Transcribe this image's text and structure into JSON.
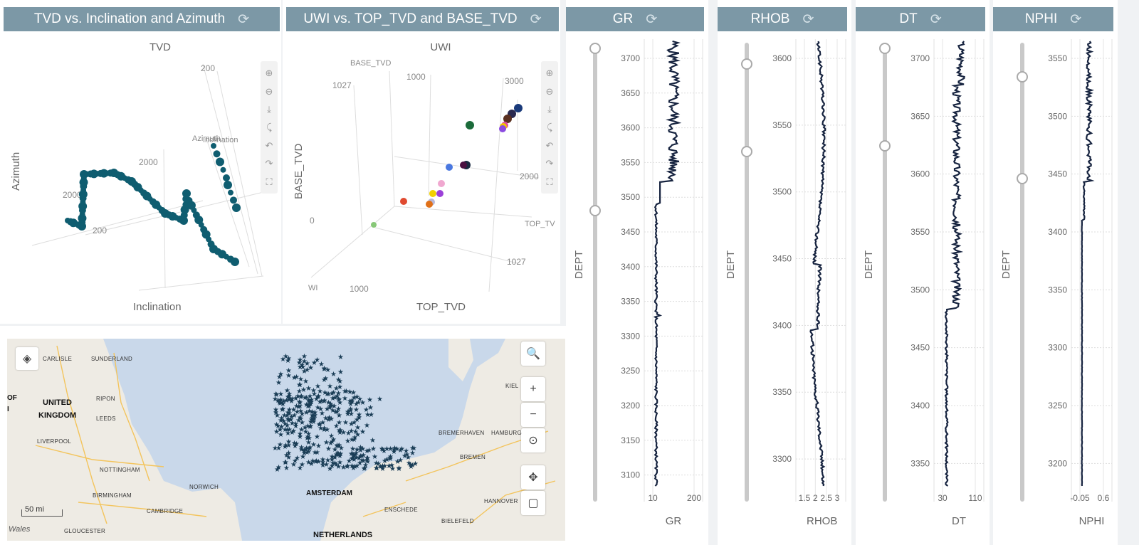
{
  "panels": {
    "tvd3d": {
      "title": "TVD vs. Inclination and Azimuth",
      "refresh_icon": "refresh-icon",
      "plot_title": "TVD",
      "xlabel": "Inclination",
      "ylabel": "Azimuth",
      "labels": {
        "t200": "200",
        "t2000a": "2000",
        "t2000b": "2000",
        "t200b": "200",
        "azimuth": "Azimuth",
        "inclination": "Inclination"
      }
    },
    "uwi3d": {
      "title": "UWI vs. TOP_TVD and BASE_TVD",
      "refresh_icon": "refresh-icon",
      "plot_title": "UWI",
      "xlabel": "TOP_TVD",
      "ylabel": "BASE_TVD",
      "labels": {
        "base_tvd": "BASE_TVD",
        "t1027a": "1027",
        "t1000a": "1000",
        "t3000": "3000",
        "t2000": "2000",
        "t0": "0",
        "top_tv": "TOP_TV",
        "t1027b": "1027",
        "t1000b": "1000",
        "uwi_cut": "WI"
      }
    }
  },
  "toolbar_icons": [
    "zoom-in-icon",
    "zoom-out-icon",
    "pan-icon",
    "orbit-icon",
    "rotate-left-icon",
    "rotate-right-icon",
    "reset-view-icon"
  ],
  "map": {
    "countries": [
      {
        "name": "UNITED",
        "id": "uk1"
      },
      {
        "name": "KINGDOM",
        "id": "uk2"
      },
      {
        "name": "AMSTERDAM",
        "id": "ams"
      },
      {
        "name": "NETHERLANDS",
        "id": "nl"
      }
    ],
    "cities": [
      "CARLISLE",
      "SUNDERLAND",
      "RIPON",
      "LEEDS",
      "LIVERPOOL",
      "NOTTINGHAM",
      "BIRMINGHAM",
      "NORWICH",
      "CAMBRIDGE",
      "GLOUCESTER",
      "BREMERHAVEN",
      "HAMBURG",
      "BREMEN",
      "HANNOVER",
      "ENSCHEDE",
      "BIELEFELD",
      "KIEL"
    ],
    "scale": "50 mi",
    "region": "Wales",
    "edge_text": [
      "OF",
      "I"
    ],
    "controls": {
      "zoom_in": "+",
      "zoom_out": "−"
    }
  },
  "logs": [
    {
      "id": "gr",
      "title": "GR",
      "xlabel": "GR",
      "ylabel": "DEPT",
      "yticks": [
        "3700",
        "3650",
        "3600",
        "3550",
        "3500",
        "3450",
        "3400",
        "3350",
        "3300",
        "3250",
        "3200",
        "3150",
        "3100"
      ],
      "xticks": [
        "10",
        "200"
      ]
    },
    {
      "id": "rhob",
      "title": "RHOB",
      "xlabel": "RHOB",
      "ylabel": "DEPT",
      "yticks": [
        "3600",
        "3550",
        "3500",
        "3450",
        "3400",
        "3350",
        "3300"
      ],
      "xticks": [
        "1.5",
        "2",
        "2.5",
        "3"
      ]
    },
    {
      "id": "dt",
      "title": "DT",
      "xlabel": "DT",
      "ylabel": "DEPT",
      "yticks": [
        "3700",
        "3650",
        "3600",
        "3550",
        "3500",
        "3450",
        "3400",
        "3350"
      ],
      "xticks": [
        "30",
        "110"
      ]
    },
    {
      "id": "nphi",
      "title": "NPHI",
      "xlabel": "NPHI",
      "ylabel": "DEPT",
      "yticks": [
        "3550",
        "3500",
        "3450",
        "3400",
        "3350",
        "3300",
        "3250",
        "3200"
      ],
      "xticks": [
        "-0.05",
        "0.6"
      ]
    }
  ]
}
